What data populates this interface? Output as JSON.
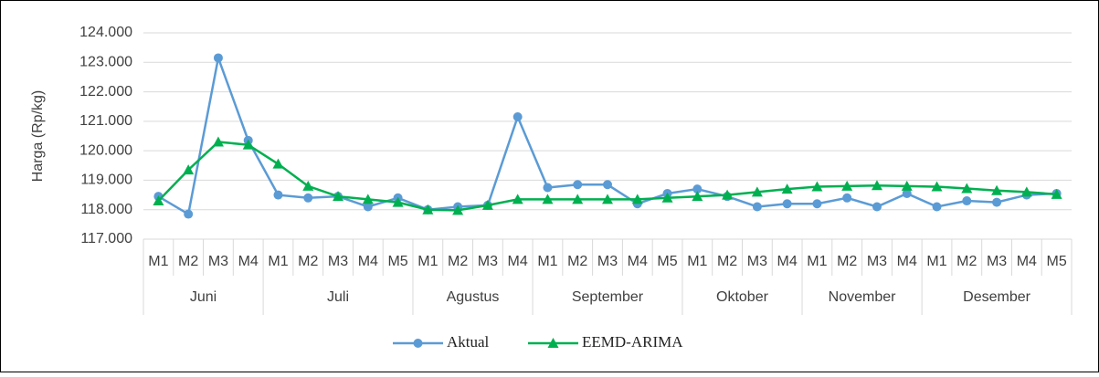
{
  "chart_data": {
    "type": "line",
    "y_label": "Harga (Rp/kg)",
    "groups": [
      {
        "name": "Juni",
        "categories": [
          "M1",
          "M2",
          "M3",
          "M4"
        ]
      },
      {
        "name": "Juli",
        "categories": [
          "M1",
          "M2",
          "M3",
          "M4",
          "M5"
        ]
      },
      {
        "name": "Agustus",
        "categories": [
          "M1",
          "M2",
          "M3",
          "M4"
        ]
      },
      {
        "name": "September",
        "categories": [
          "M1",
          "M2",
          "M3",
          "M4",
          "M5"
        ]
      },
      {
        "name": "Oktober",
        "categories": [
          "M1",
          "M2",
          "M3",
          "M4"
        ]
      },
      {
        "name": "November",
        "categories": [
          "M1",
          "M2",
          "M3",
          "M4"
        ]
      },
      {
        "name": "Desember",
        "categories": [
          "M1",
          "M2",
          "M3",
          "M4",
          "M5"
        ]
      }
    ],
    "series": [
      {
        "name": "Aktual",
        "color": "#5b9bd5",
        "marker": "circle",
        "values": [
          118450,
          117850,
          123150,
          120350,
          118500,
          118400,
          118450,
          118100,
          118400,
          118000,
          118100,
          118150,
          121150,
          118750,
          118850,
          118850,
          118200,
          118550,
          118700,
          118450,
          118100,
          118200,
          118200,
          118400,
          118100,
          118550,
          118100,
          118300,
          118250,
          118500,
          118550
        ]
      },
      {
        "name": "EEMD-ARIMA",
        "color": "#00b050",
        "marker": "triangle",
        "values": [
          118300,
          119350,
          120300,
          120200,
          119550,
          118800,
          118450,
          118350,
          118250,
          118000,
          117980,
          118150,
          118350,
          118350,
          118350,
          118350,
          118350,
          118400,
          118450,
          118500,
          118600,
          118700,
          118780,
          118800,
          118820,
          118800,
          118780,
          118720,
          118650,
          118600,
          118520
        ]
      }
    ],
    "ylim": [
      117000,
      124000
    ],
    "yticks": [
      {
        "value": 117000,
        "label": "117.000"
      },
      {
        "value": 118000,
        "label": "118.000"
      },
      {
        "value": 119000,
        "label": "119.000"
      },
      {
        "value": 120000,
        "label": "120.000"
      },
      {
        "value": 121000,
        "label": "121.000"
      },
      {
        "value": 122000,
        "label": "122.000"
      },
      {
        "value": 123000,
        "label": "123.000"
      },
      {
        "value": 124000,
        "label": "124.000"
      }
    ],
    "grid": true,
    "legend": "bottom"
  }
}
